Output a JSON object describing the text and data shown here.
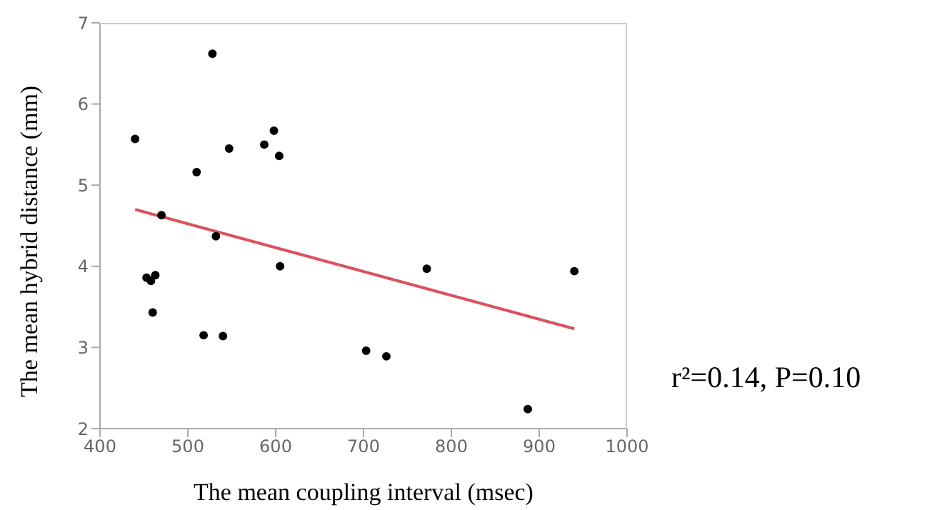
{
  "chart_data": {
    "type": "scatter",
    "xlabel": "The mean coupling interval (msec)",
    "ylabel": "The mean hybrid distance (mm)",
    "xlim": [
      400,
      1000
    ],
    "xticks": [
      400,
      500,
      600,
      700,
      800,
      900,
      1000
    ],
    "ylim": [
      2,
      7
    ],
    "yticks": [
      2,
      3,
      4,
      5,
      6,
      7
    ],
    "grid": false,
    "legend": false,
    "series": [
      {
        "marker": "circle",
        "color": "#000000",
        "x": [
          440,
          528,
          510,
          547,
          587,
          598,
          604,
          470,
          532,
          605,
          772,
          940,
          453,
          458,
          463,
          460,
          518,
          540,
          703,
          726,
          887
        ],
        "values": [
          5.57,
          6.62,
          5.16,
          5.45,
          5.5,
          5.67,
          5.36,
          4.63,
          4.37,
          4.0,
          3.97,
          3.94,
          3.86,
          3.82,
          3.89,
          3.43,
          3.15,
          3.14,
          2.96,
          2.89,
          2.24
        ]
      },
      {
        "type": "line",
        "marker": "none",
        "color": "#d9535f",
        "x": [
          440,
          940
        ],
        "values": [
          4.7,
          3.23
        ]
      }
    ],
    "annotations": [
      "r²=0.14, P=0.10"
    ]
  }
}
